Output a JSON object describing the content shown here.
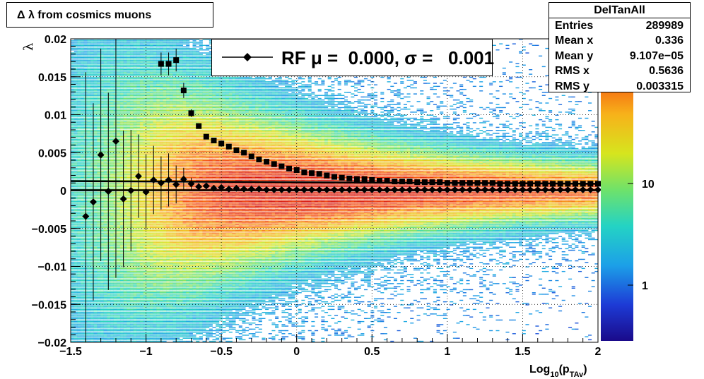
{
  "chart_data": {
    "type": "heatmap",
    "title": "Δ λ from cosmics muons",
    "xlabel": "Log10(pTAv)",
    "ylabel": "λ",
    "xlim": [
      -1.5,
      2
    ],
    "ylim": [
      -0.02,
      0.02
    ],
    "x_ticks": [
      "−1.5",
      "−1",
      "−0.5",
      "0",
      "0.5",
      "1",
      "1.5",
      "2"
    ],
    "y_ticks": [
      "−0.02",
      "−0.015",
      "−0.01",
      "−0.005",
      "0",
      "0.005",
      "0.01",
      "0.015",
      "0.02"
    ],
    "z_scale": "log",
    "z_ticks": [
      "1",
      "10"
    ],
    "grid": true,
    "legend": {
      "entry": "RF μ =  0.000, σ =   0.001",
      "placement": "top-center"
    },
    "stats": {
      "name": "DelTanAll",
      "rows": [
        {
          "key": "Entries",
          "value": "289989"
        },
        {
          "key": "Mean x",
          "value": "0.336"
        },
        {
          "key": "Mean y",
          "value": "9.107e−05"
        },
        {
          "key": "RMS x",
          "value": "0.5636"
        },
        {
          "key": "RMS y",
          "value": "0.003315"
        }
      ]
    },
    "series": [
      {
        "marker": "diamond",
        "x": [
          -1.4,
          -1.35,
          -1.3,
          -1.25,
          -1.2,
          -1.15,
          -1.1,
          -1.05,
          -1.0,
          -0.95,
          -0.9,
          -0.85,
          -0.8,
          -0.75,
          -0.7,
          -0.65,
          -0.6,
          -0.55,
          -0.5,
          -0.45,
          -0.4,
          -0.35,
          -0.3,
          -0.25,
          -0.2,
          -0.15,
          -0.1,
          -0.05,
          0.0,
          0.05,
          0.1,
          0.15,
          0.2,
          0.25,
          0.3,
          0.35,
          0.4,
          0.45,
          0.5,
          0.55,
          0.6,
          0.65,
          0.7,
          0.75,
          0.8,
          0.85,
          0.9,
          0.95,
          1.0,
          1.05,
          1.1,
          1.15,
          1.2,
          1.25,
          1.3,
          1.35,
          1.4,
          1.45,
          1.5,
          1.55,
          1.6,
          1.65,
          1.7,
          1.75,
          1.8,
          1.85,
          1.9,
          1.95,
          2.0
        ],
        "y": [
          -0.0034,
          -0.0015,
          0.0047,
          -0.0001,
          0.0065,
          -0.0011,
          0.0,
          0.0019,
          -0.0002,
          0.0014,
          0.001,
          0.0014,
          0.0008,
          0.0015,
          0.0009,
          0.0005,
          0.0006,
          0.0003,
          0.0004,
          0.0002,
          0.0003,
          0.0002,
          0.0002,
          0.0002,
          0.0001,
          0.0001,
          0.0001,
          0.0001,
          0.0001,
          0.0001,
          0.0001,
          0.0001,
          0.0001,
          0.0001,
          0.0001,
          0.0001,
          0.0001,
          0.0001,
          0.0001,
          0.0001,
          0.0001,
          0.0001,
          0.0001,
          0.0001,
          0.0001,
          0.0001,
          0.0001,
          0.0001,
          0.0001,
          0.0001,
          0.0001,
          0.0001,
          0.0001,
          0.0001,
          0.0001,
          0.0001,
          0.0001,
          0.0001,
          0.0001,
          0.0001,
          0.0001,
          0.0001,
          0.0001,
          0.0001,
          0.0001,
          0.0001,
          0.0001,
          0.0001,
          0.0001
        ],
        "yerr": [
          0.019,
          0.013,
          0.014,
          0.013,
          0.018,
          0.009,
          0.008,
          0.0055,
          0.005,
          0.0045,
          0.0035,
          0.0035,
          0.0025,
          0.0015,
          0.0008,
          0.0005,
          0.0004,
          0.0003,
          0.0002,
          0.0002,
          0.0002,
          0.0002,
          0.0001,
          0.0001,
          0.0001,
          0.0001,
          0.0001,
          0.0001,
          0.0001,
          0.0001,
          0.0001,
          0.0001,
          0.0001,
          0.0001,
          0.0001,
          0.0001,
          0.0001,
          0.0001,
          0.0001,
          0.0001,
          0.0001,
          0.0001,
          0.0001,
          0.0001,
          0.0001,
          0.0001,
          0.0001,
          0.0001,
          0.0001,
          0.0001,
          0.0001,
          0.0001,
          0.0001,
          0.0001,
          0.0001,
          0.0001,
          0.0001,
          0.0001,
          0.0001,
          0.0001,
          0.0001,
          0.0001,
          0.0001,
          0.0001,
          0.0001,
          0.0001,
          0.0001,
          0.0001,
          0.0001
        ]
      },
      {
        "marker": "square",
        "x": [
          -0.9,
          -0.85,
          -0.8,
          -0.75,
          -0.7,
          -0.65,
          -0.6,
          -0.55,
          -0.5,
          -0.45,
          -0.4,
          -0.35,
          -0.3,
          -0.25,
          -0.2,
          -0.15,
          -0.1,
          -0.05,
          0.0,
          0.05,
          0.1,
          0.15,
          0.2,
          0.25,
          0.3,
          0.35,
          0.4,
          0.45,
          0.5,
          0.55,
          0.6,
          0.65,
          0.7,
          0.75,
          0.8,
          0.85,
          0.9,
          0.95,
          1.0,
          1.05,
          1.1,
          1.15,
          1.2,
          1.25,
          1.3,
          1.35,
          1.4,
          1.45,
          1.5,
          1.55,
          1.6,
          1.65,
          1.7,
          1.75,
          1.8,
          1.85,
          1.9,
          1.95,
          2.0
        ],
        "y": [
          0.0167,
          0.0167,
          0.0172,
          0.0132,
          0.0102,
          0.0085,
          0.0071,
          0.0066,
          0.0062,
          0.0058,
          0.0053,
          0.005,
          0.0045,
          0.0041,
          0.0038,
          0.0035,
          0.0032,
          0.0029,
          0.0027,
          0.0024,
          0.0023,
          0.0022,
          0.002,
          0.0018,
          0.0017,
          0.0016,
          0.0015,
          0.0015,
          0.0014,
          0.0013,
          0.0013,
          0.0012,
          0.0012,
          0.0012,
          0.0011,
          0.0011,
          0.0011,
          0.0011,
          0.001,
          0.001,
          0.001,
          0.001,
          0.001,
          0.001,
          0.001,
          0.0009,
          0.0009,
          0.0009,
          0.0009,
          0.0009,
          0.0009,
          0.0009,
          0.0009,
          0.0009,
          0.0009,
          0.0009,
          0.0009,
          0.0009,
          0.0009
        ],
        "yerr": [
          0.0015,
          0.0015,
          0.0015,
          0.001,
          0.0005,
          0.0002,
          0.0002,
          0.0001,
          0.0001,
          0.0001,
          0.0001,
          0.0001,
          0.0001,
          0.0001,
          0.0001,
          0.0001,
          0.0001,
          0.0001,
          0.0001,
          0.0001,
          0.0001,
          0.0001,
          0.0001,
          0.0001,
          0.0001,
          0.0001,
          0.0001,
          0.0001,
          0.0001,
          0.0001,
          0.0001,
          0.0001,
          0.0001,
          0.0001,
          0.0001,
          0.0001,
          0.0001,
          0.0001,
          0.0001,
          0.0001,
          0.0001,
          0.0001,
          0.0001,
          0.0001,
          0.0001,
          0.0001,
          0.0001,
          0.0001,
          0.0001,
          0.0001,
          0.0001,
          0.0001,
          0.0001,
          0.0001,
          0.0001,
          0.0001,
          0.0001,
          0.0001,
          0.0001
        ]
      }
    ],
    "fit_lines": [
      {
        "x": [
          -1.5,
          2.0
        ],
        "y": [
          5e-05,
          5e-05
        ]
      },
      {
        "x": [
          -1.5,
          2.0
        ],
        "y": [
          0.00125,
          0.0009
        ]
      }
    ]
  }
}
